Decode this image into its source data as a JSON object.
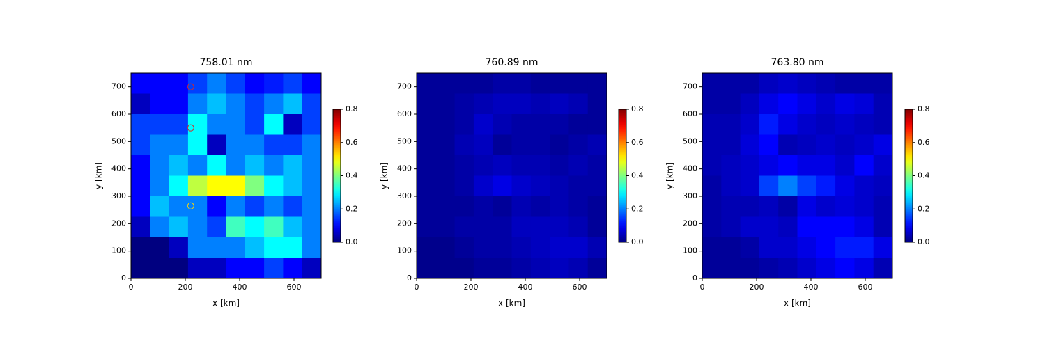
{
  "chart_data": [
    {
      "type": "heatmap",
      "title": "758.01 nm",
      "xlabel": "x [km]",
      "ylabel": "y [km]",
      "xlim": [
        0,
        700
      ],
      "ylim": [
        0,
        750
      ],
      "xticks": [
        0,
        200,
        400,
        600
      ],
      "yticks": [
        0,
        100,
        200,
        300,
        400,
        500,
        600,
        700
      ],
      "colormap": "jet",
      "clim": [
        0,
        0.8
      ],
      "cticks": [
        0.0,
        0.2,
        0.4,
        0.6,
        0.8
      ],
      "values": [
        [
          0.1,
          0.1,
          0.1,
          0.15,
          0.2,
          0.15,
          0.1,
          0.12,
          0.15,
          0.1
        ],
        [
          0.05,
          0.1,
          0.1,
          0.2,
          0.25,
          0.2,
          0.15,
          0.2,
          0.25,
          0.15
        ],
        [
          0.15,
          0.15,
          0.15,
          0.3,
          0.2,
          0.2,
          0.15,
          0.3,
          0.05,
          0.15
        ],
        [
          0.15,
          0.2,
          0.2,
          0.3,
          0.05,
          0.2,
          0.2,
          0.15,
          0.15,
          0.2
        ],
        [
          0.1,
          0.2,
          0.25,
          0.2,
          0.3,
          0.2,
          0.25,
          0.2,
          0.25,
          0.2
        ],
        [
          0.1,
          0.2,
          0.3,
          0.45,
          0.5,
          0.5,
          0.4,
          0.3,
          0.25,
          0.2
        ],
        [
          0.1,
          0.25,
          0.2,
          0.2,
          0.1,
          0.2,
          0.15,
          0.2,
          0.15,
          0.2
        ],
        [
          0.05,
          0.2,
          0.25,
          0.2,
          0.15,
          0.35,
          0.3,
          0.35,
          0.25,
          0.2
        ],
        [
          0,
          0,
          0.05,
          0.2,
          0.2,
          0.2,
          0.25,
          0.3,
          0.3,
          0.2
        ],
        [
          0,
          0,
          0,
          0.05,
          0.05,
          0.1,
          0.1,
          0.15,
          0.1,
          0.05
        ]
      ],
      "markers": {
        "x": [
          220,
          220,
          220
        ],
        "y": [
          700,
          550,
          265
        ],
        "colors": [
          "#d62728",
          "#d62728",
          "#ffd700"
        ]
      }
    },
    {
      "type": "heatmap",
      "title": "760.89 nm",
      "xlabel": "x [km]",
      "ylabel": "y [km]",
      "xlim": [
        0,
        700
      ],
      "ylim": [
        0,
        750
      ],
      "xticks": [
        0,
        200,
        400,
        600
      ],
      "yticks": [
        0,
        100,
        200,
        300,
        400,
        500,
        600,
        700
      ],
      "colormap": "jet",
      "clim": [
        0,
        0.8
      ],
      "cticks": [
        0.0,
        0.2,
        0.4,
        0.6,
        0.8
      ],
      "values": [
        [
          0.02,
          0.02,
          0.02,
          0.02,
          0.03,
          0.03,
          0.02,
          0.02,
          0.02,
          0.02
        ],
        [
          0.02,
          0.02,
          0.03,
          0.04,
          0.05,
          0.05,
          0.04,
          0.05,
          0.04,
          0.02
        ],
        [
          0.02,
          0.02,
          0.03,
          0.06,
          0.04,
          0.03,
          0.03,
          0.03,
          0.02,
          0.02
        ],
        [
          0.02,
          0.02,
          0.04,
          0.05,
          0.02,
          0.03,
          0.03,
          0.02,
          0.03,
          0.04
        ],
        [
          0.02,
          0.02,
          0.03,
          0.04,
          0.05,
          0.04,
          0.04,
          0.03,
          0.04,
          0.03
        ],
        [
          0.02,
          0.02,
          0.03,
          0.06,
          0.08,
          0.06,
          0.05,
          0.04,
          0.03,
          0.03
        ],
        [
          0.02,
          0.02,
          0.02,
          0.03,
          0.02,
          0.04,
          0.03,
          0.04,
          0.03,
          0.02
        ],
        [
          0.02,
          0.02,
          0.03,
          0.03,
          0.03,
          0.05,
          0.05,
          0.05,
          0.04,
          0.02
        ],
        [
          0.01,
          0.01,
          0.02,
          0.03,
          0.03,
          0.04,
          0.05,
          0.06,
          0.06,
          0.04
        ],
        [
          0.01,
          0.01,
          0.01,
          0.02,
          0.02,
          0.03,
          0.04,
          0.05,
          0.04,
          0.02
        ]
      ]
    },
    {
      "type": "heatmap",
      "title": "763.80 nm",
      "xlabel": "x [km]",
      "ylabel": "y [km]",
      "xlim": [
        0,
        700
      ],
      "ylim": [
        0,
        750
      ],
      "xticks": [
        0,
        200,
        400,
        600
      ],
      "yticks": [
        0,
        100,
        200,
        300,
        400,
        500,
        600,
        700
      ],
      "colormap": "jet",
      "clim": [
        0,
        0.8
      ],
      "cticks": [
        0.0,
        0.2,
        0.4,
        0.6,
        0.8
      ],
      "values": [
        [
          0.03,
          0.03,
          0.03,
          0.05,
          0.06,
          0.05,
          0.04,
          0.03,
          0.03,
          0.03
        ],
        [
          0.03,
          0.03,
          0.05,
          0.08,
          0.1,
          0.08,
          0.06,
          0.08,
          0.07,
          0.04
        ],
        [
          0.04,
          0.04,
          0.06,
          0.12,
          0.08,
          0.06,
          0.05,
          0.06,
          0.05,
          0.04
        ],
        [
          0.04,
          0.04,
          0.07,
          0.1,
          0.04,
          0.05,
          0.06,
          0.05,
          0.06,
          0.08
        ],
        [
          0.04,
          0.05,
          0.06,
          0.08,
          0.1,
          0.08,
          0.08,
          0.06,
          0.1,
          0.06
        ],
        [
          0.03,
          0.05,
          0.06,
          0.15,
          0.2,
          0.15,
          0.12,
          0.08,
          0.06,
          0.05
        ],
        [
          0.03,
          0.04,
          0.04,
          0.05,
          0.03,
          0.08,
          0.06,
          0.07,
          0.06,
          0.04
        ],
        [
          0.03,
          0.04,
          0.06,
          0.06,
          0.05,
          0.1,
          0.1,
          0.1,
          0.08,
          0.04
        ],
        [
          0.02,
          0.02,
          0.03,
          0.06,
          0.06,
          0.08,
          0.1,
          0.12,
          0.12,
          0.08
        ],
        [
          0.02,
          0.02,
          0.02,
          0.03,
          0.04,
          0.06,
          0.08,
          0.1,
          0.08,
          0.04
        ]
      ]
    }
  ]
}
